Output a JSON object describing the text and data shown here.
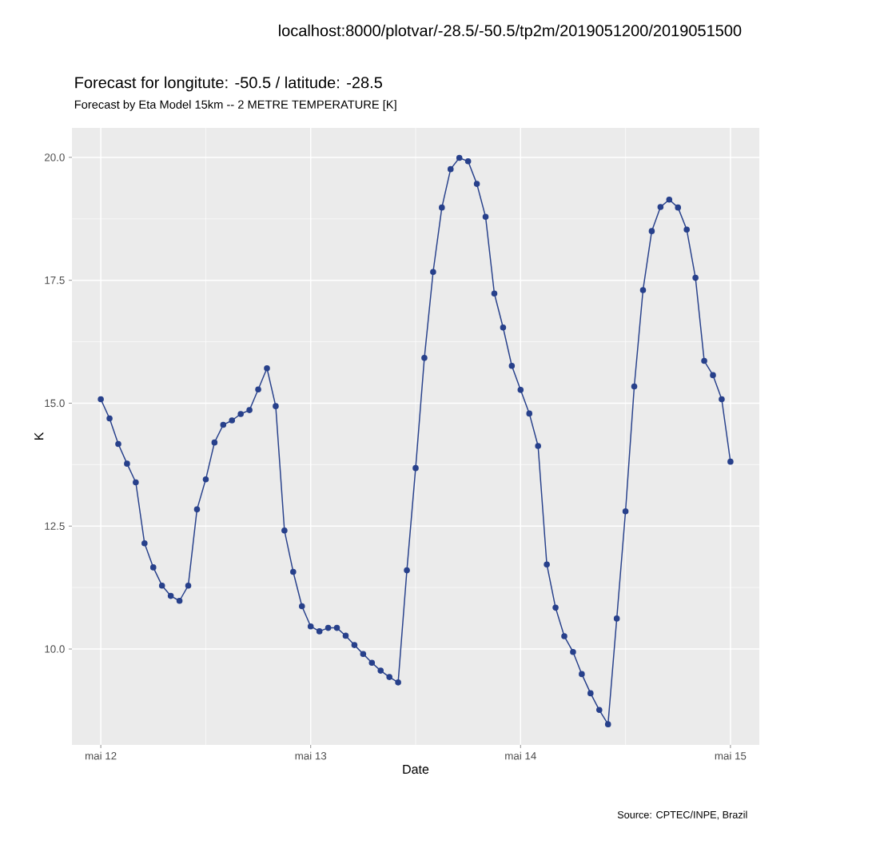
{
  "chart_data": {
    "type": "line",
    "title": "Forecast for longitute: -50.5 / latitude: -28.5",
    "subtitle": "Forecast by Eta Model 15km -- 2 METRE TEMPERATURE [K]",
    "xlabel": "Date",
    "ylabel": "K",
    "annotations": [
      "Source: CPTEC/INPE, Brazil",
      "localhost:8000/plotvar/-28.5/-50.5/tp2m/2019051200/2019051500"
    ],
    "x": [
      "2019-05-12T00:00",
      "2019-05-12T01:00",
      "2019-05-12T02:00",
      "2019-05-12T03:00",
      "2019-05-12T04:00",
      "2019-05-12T05:00",
      "2019-05-12T06:00",
      "2019-05-12T07:00",
      "2019-05-12T08:00",
      "2019-05-12T09:00",
      "2019-05-12T10:00",
      "2019-05-12T11:00",
      "2019-05-12T12:00",
      "2019-05-12T13:00",
      "2019-05-12T14:00",
      "2019-05-12T15:00",
      "2019-05-12T16:00",
      "2019-05-12T17:00",
      "2019-05-12T18:00",
      "2019-05-12T19:00",
      "2019-05-12T20:00",
      "2019-05-12T21:00",
      "2019-05-12T22:00",
      "2019-05-12T23:00",
      "2019-05-13T00:00",
      "2019-05-13T01:00",
      "2019-05-13T02:00",
      "2019-05-13T03:00",
      "2019-05-13T04:00",
      "2019-05-13T05:00",
      "2019-05-13T06:00",
      "2019-05-13T07:00",
      "2019-05-13T08:00",
      "2019-05-13T09:00",
      "2019-05-13T10:00",
      "2019-05-13T11:00",
      "2019-05-13T12:00",
      "2019-05-13T13:00",
      "2019-05-13T14:00",
      "2019-05-13T15:00",
      "2019-05-13T16:00",
      "2019-05-13T17:00",
      "2019-05-13T18:00",
      "2019-05-13T19:00",
      "2019-05-13T20:00",
      "2019-05-13T21:00",
      "2019-05-13T22:00",
      "2019-05-13T23:00",
      "2019-05-14T00:00",
      "2019-05-14T01:00",
      "2019-05-14T02:00",
      "2019-05-14T03:00",
      "2019-05-14T04:00",
      "2019-05-14T05:00",
      "2019-05-14T06:00",
      "2019-05-14T07:00",
      "2019-05-14T08:00",
      "2019-05-14T09:00",
      "2019-05-14T10:00",
      "2019-05-14T11:00",
      "2019-05-14T12:00",
      "2019-05-14T13:00",
      "2019-05-14T14:00",
      "2019-05-14T15:00",
      "2019-05-14T16:00",
      "2019-05-14T17:00",
      "2019-05-14T18:00",
      "2019-05-14T19:00",
      "2019-05-14T20:00",
      "2019-05-14T21:00",
      "2019-05-14T22:00",
      "2019-05-14T23:00",
      "2019-05-15T00:00"
    ],
    "series": [
      {
        "color": "#27408b",
        "values": [
          15.08,
          14.69,
          14.17,
          13.77,
          13.39,
          12.15,
          11.66,
          11.29,
          11.08,
          10.98,
          11.29,
          12.84,
          13.45,
          14.2,
          14.56,
          14.65,
          14.78,
          14.86,
          15.28,
          15.71,
          14.94,
          12.41,
          11.57,
          10.87,
          10.46,
          10.36,
          10.43,
          10.43,
          10.27,
          10.08,
          9.9,
          9.72,
          9.56,
          9.43,
          9.32,
          11.6,
          13.68,
          15.92,
          17.67,
          18.98,
          19.76,
          19.99,
          19.92,
          19.46,
          18.79,
          17.23,
          16.54,
          15.76,
          15.27,
          14.79,
          14.13,
          11.72,
          10.84,
          10.26,
          9.94,
          9.49,
          9.1,
          8.76,
          8.47,
          10.62,
          12.8,
          15.34,
          17.3,
          18.5,
          18.99,
          19.14,
          18.98,
          18.53,
          17.55,
          15.86,
          15.57,
          15.08,
          13.81
        ]
      }
    ],
    "xlim": [
      "2019-05-11T20:42",
      "2019-05-15T03:18"
    ],
    "ylim": [
      8.05,
      20.6
    ],
    "xticks": [
      {
        "value": "2019-05-12",
        "label": "mai 12"
      },
      {
        "value": "2019-05-13",
        "label": "mai 13"
      },
      {
        "value": "2019-05-14",
        "label": "mai 14"
      },
      {
        "value": "2019-05-15",
        "label": "mai 15"
      }
    ],
    "yticks": [
      {
        "value": 10,
        "label": "10.0"
      },
      {
        "value": 12.5,
        "label": "12.5"
      },
      {
        "value": 15,
        "label": "15.0"
      },
      {
        "value": 17.5,
        "label": "17.5"
      },
      {
        "value": 20,
        "label": "20.0"
      }
    ],
    "grid": true,
    "marker": "circle",
    "line_style": "solid"
  }
}
